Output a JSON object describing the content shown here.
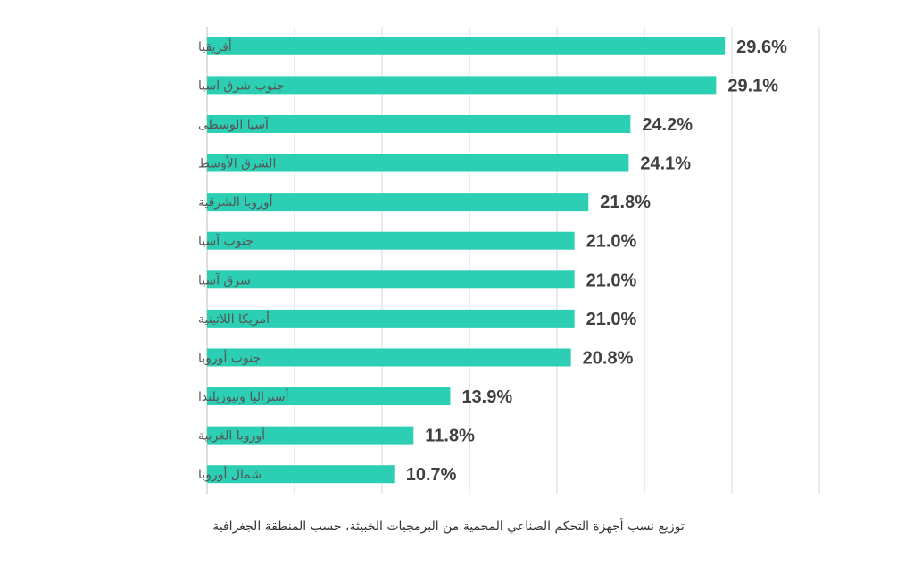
{
  "chart_data": {
    "type": "bar",
    "orientation": "horizontal",
    "categories": [
      "أفريقيا",
      "جنوب شرق آسيا",
      "آسيا الوسطى",
      "الشرق الأوسط",
      "أوروبا الشرقية",
      "جنوب آسيا",
      "شرق آسيا",
      "أمريكا اللاتينية",
      "جنوب أوروبا",
      "أستراليا ونيوزيلندا",
      "أوروبا الغربية",
      "شمال أوروبا"
    ],
    "values": [
      29.6,
      29.1,
      24.2,
      24.1,
      21.8,
      21.0,
      21.0,
      21.0,
      20.8,
      13.9,
      11.8,
      10.7
    ],
    "data_labels": [
      "29.6%",
      "29.1%",
      "24.2%",
      "24.1%",
      "21.8%",
      "21.0%",
      "21.0%",
      "21.0%",
      "20.8%",
      "13.9%",
      "11.8%",
      "10.7%"
    ],
    "unit": "%",
    "xlim": [
      0,
      35
    ],
    "grid_step": 5,
    "grid": true,
    "bar_color": "#2ccfb4",
    "title": "توزيع نسب أجهزة التحكم الصناعي المحمية من البرمجيات الخبيثة، حسب المنطقة الجغرافية"
  }
}
